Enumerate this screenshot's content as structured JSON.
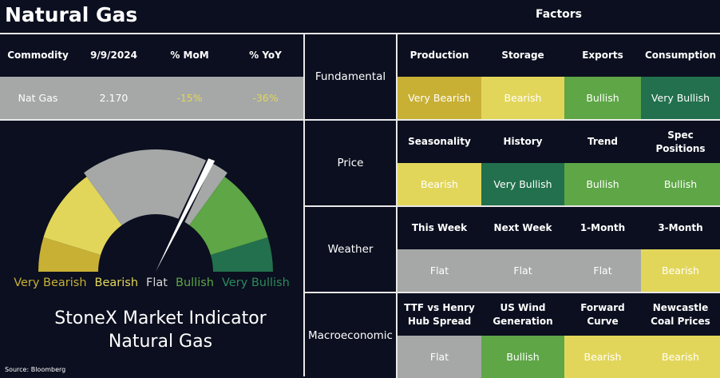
{
  "header": {
    "title": "Natural Gas",
    "factors_title": "Factors"
  },
  "summary": {
    "columns": [
      "Commodity",
      "9/9/2024",
      "% MoM",
      "% YoY"
    ],
    "row": [
      "Nat Gas",
      "2.170",
      "-15%",
      "-36%"
    ]
  },
  "gauge": {
    "labels": [
      "Very Bearish",
      "Bearish",
      "Flat",
      "Bullish",
      "Very Bullish"
    ],
    "title": [
      "StoneX Market Indicator",
      "Natural Gas"
    ]
  },
  "source": "Source: Bloomberg",
  "groups": [
    {
      "name": "Fundamental",
      "factors": [
        {
          "name": "Production",
          "rating": "Very Bearish"
        },
        {
          "name": "Storage",
          "rating": "Bearish"
        },
        {
          "name": "Exports",
          "rating": "Bullish"
        },
        {
          "name": "Consumption",
          "rating": "Very Bullish"
        }
      ]
    },
    {
      "name": "Price",
      "factors": [
        {
          "name": "Seasonality",
          "rating": "Bearish"
        },
        {
          "name": "History",
          "rating": "Very Bullish"
        },
        {
          "name": "Trend",
          "rating": "Bullish"
        },
        {
          "name": "Spec Positions",
          "rating": "Bullish"
        }
      ]
    },
    {
      "name": "Weather",
      "factors": [
        {
          "name": "This Week",
          "rating": "Flat"
        },
        {
          "name": "Next Week",
          "rating": "Flat"
        },
        {
          "name": "1-Month",
          "rating": "Flat"
        },
        {
          "name": "3-Month",
          "rating": "Bearish"
        }
      ]
    },
    {
      "name": "Macroeconomic",
      "factors": [
        {
          "name": "TTF vs Henry Hub Spread",
          "rating": "Flat"
        },
        {
          "name": "US Wind Generation",
          "rating": "Bullish"
        },
        {
          "name": "Forward Curve",
          "rating": "Bearish"
        },
        {
          "name": "Newcastle Coal Prices",
          "rating": "Bearish"
        }
      ]
    }
  ]
}
